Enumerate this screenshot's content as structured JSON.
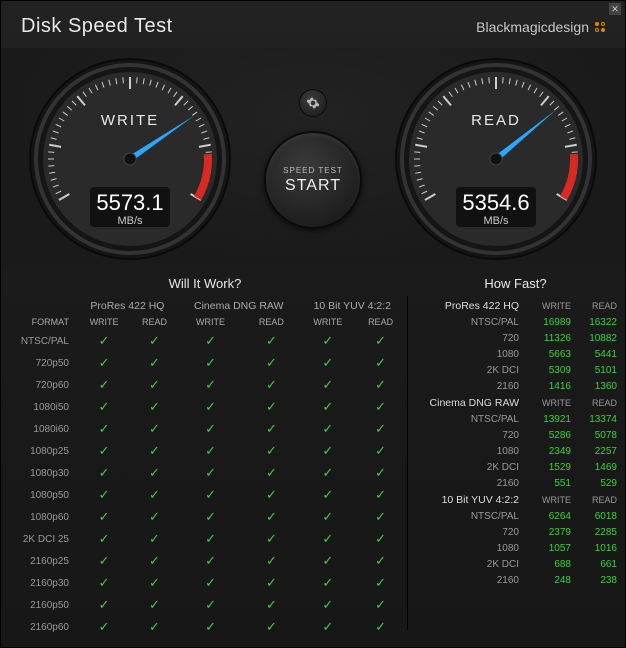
{
  "title": "Disk Speed Test",
  "brand": "Blackmagicdesign",
  "colors": {
    "accent": "#e08a00",
    "needle": "#2aa8ff",
    "redzone": "#d72a22",
    "check": "#3dd23d",
    "bg": "#1a1a1a",
    "text": "#e8e8e8"
  },
  "gauges": {
    "write": {
      "label": "WRITE",
      "value": "5573.1",
      "unit": "MB/s",
      "needle_angle_deg": 132
    },
    "read": {
      "label": "READ",
      "value": "5354.6",
      "unit": "MB/s",
      "needle_angle_deg": 128
    }
  },
  "start_button": {
    "small": "SPEED TEST",
    "big": "START"
  },
  "will_title": "Will It Work?",
  "fast_title": "How Fast?",
  "format_col_label": "FORMAT",
  "codec_labels": [
    "ProRes 422 HQ",
    "Cinema DNG RAW",
    "10 Bit YUV 4:2:2"
  ],
  "wr_labels": {
    "write": "WRITE",
    "read": "READ"
  },
  "formats": [
    "NTSC/PAL",
    "720p50",
    "720p60",
    "1080i50",
    "1080i60",
    "1080p25",
    "1080p30",
    "1080p50",
    "1080p60",
    "2K DCI 25",
    "2160p25",
    "2160p30",
    "2160p50",
    "2160p60"
  ],
  "will_grid_all_true": true,
  "fast": [
    {
      "group": "ProRes 422 HQ",
      "rows": [
        {
          "label": "NTSC/PAL",
          "write": "16989",
          "read": "16322"
        },
        {
          "label": "720",
          "write": "11326",
          "read": "10882"
        },
        {
          "label": "1080",
          "write": "5663",
          "read": "5441"
        },
        {
          "label": "2K DCI",
          "write": "5309",
          "read": "5101"
        },
        {
          "label": "2160",
          "write": "1416",
          "read": "1360"
        }
      ]
    },
    {
      "group": "Cinema DNG RAW",
      "rows": [
        {
          "label": "NTSC/PAL",
          "write": "13921",
          "read": "13374"
        },
        {
          "label": "720",
          "write": "5286",
          "read": "5078"
        },
        {
          "label": "1080",
          "write": "2349",
          "read": "2257"
        },
        {
          "label": "2K DCI",
          "write": "1529",
          "read": "1469"
        },
        {
          "label": "2160",
          "write": "551",
          "read": "529"
        }
      ]
    },
    {
      "group": "10 Bit YUV 4:2:2",
      "rows": [
        {
          "label": "NTSC/PAL",
          "write": "6264",
          "read": "6018"
        },
        {
          "label": "720",
          "write": "2379",
          "read": "2285"
        },
        {
          "label": "1080",
          "write": "1057",
          "read": "1016"
        },
        {
          "label": "2K DCI",
          "write": "688",
          "read": "661"
        },
        {
          "label": "2160",
          "write": "248",
          "read": "238"
        }
      ]
    }
  ]
}
